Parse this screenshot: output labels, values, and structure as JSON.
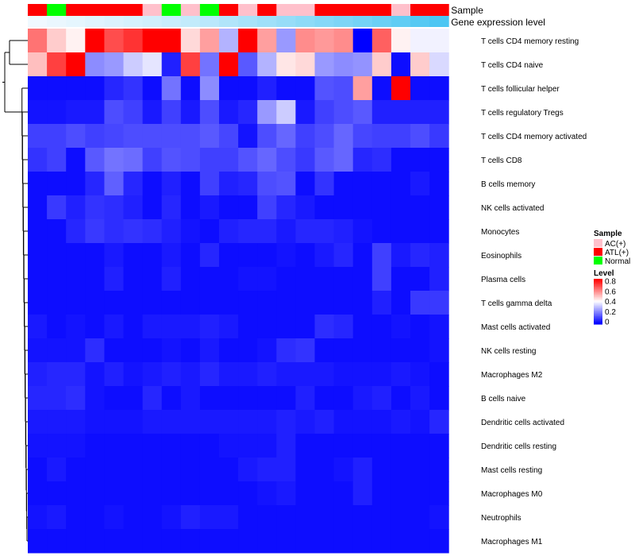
{
  "chart_data": {
    "type": "heatmap",
    "title": "",
    "annotations": {
      "sample_label": "Sample",
      "gene_expression_label": "Gene expression level",
      "sample_groups": [
        "ATL(+)",
        "Normal",
        "ATL(+)",
        "ATL(+)",
        "ATL(+)",
        "ATL(+)",
        "AC(+)",
        "Normal",
        "AC(+)",
        "Normal",
        "ATL(+)",
        "AC(+)",
        "ATL(+)",
        "AC(+)",
        "AC(+)",
        "ATL(+)",
        "ATL(+)",
        "ATL(+)",
        "ATL(+)",
        "AC(+)",
        "ATL(+)",
        "ATL(+)"
      ],
      "gene_expression_values": [
        0.02,
        0.05,
        0.08,
        0.11,
        0.14,
        0.17,
        0.2,
        0.24,
        0.28,
        0.33,
        0.38,
        0.43,
        0.48,
        0.53,
        0.58,
        0.63,
        0.68,
        0.73,
        0.78,
        0.84,
        0.9,
        0.96
      ]
    },
    "rows": [
      "T cells CD4 memory resting",
      "T cells CD4 naive",
      "T cells follicular helper",
      "T cells regulatory  Tregs",
      "T cells CD4 memory activated",
      "T cells CD8",
      "B cells memory",
      "NK cells activated",
      "Monocytes",
      "Eosinophils",
      "Plasma cells",
      "T cells gamma delta",
      "Mast cells activated",
      "NK cells resting",
      "Macrophages M2",
      "B cells naive",
      "Dendritic cells activated",
      "Dendritic cells resting",
      "Mast cells resting",
      "Macrophages M0",
      "Neutrophils",
      "Macrophages M1"
    ],
    "values": [
      [
        0.62,
        0.48,
        0.42,
        0.8,
        0.68,
        0.72,
        0.8,
        0.8,
        0.46,
        0.55,
        0.28,
        0.8,
        0.55,
        0.24,
        0.58,
        0.56,
        0.58,
        0.0,
        0.65,
        0.42,
        0.38,
        0.38
      ],
      [
        0.5,
        0.7,
        0.8,
        0.22,
        0.24,
        0.32,
        0.36,
        0.05,
        0.7,
        0.18,
        0.8,
        0.14,
        0.28,
        0.44,
        0.46,
        0.24,
        0.22,
        0.23,
        0.48,
        0.02,
        0.48,
        0.34
      ],
      [
        0.02,
        0.02,
        0.02,
        0.02,
        0.06,
        0.08,
        0.02,
        0.18,
        0.02,
        0.22,
        0.02,
        0.02,
        0.05,
        0.02,
        0.02,
        0.13,
        0.12,
        0.55,
        0.02,
        0.8,
        0.02,
        0.02
      ],
      [
        0.03,
        0.03,
        0.04,
        0.04,
        0.12,
        0.1,
        0.04,
        0.1,
        0.04,
        0.12,
        0.04,
        0.06,
        0.24,
        0.32,
        0.04,
        0.1,
        0.12,
        0.14,
        0.05,
        0.05,
        0.05,
        0.05
      ],
      [
        0.1,
        0.1,
        0.12,
        0.1,
        0.11,
        0.12,
        0.12,
        0.12,
        0.12,
        0.14,
        0.11,
        0.03,
        0.12,
        0.16,
        0.1,
        0.12,
        0.16,
        0.11,
        0.1,
        0.1,
        0.12,
        0.09
      ],
      [
        0.08,
        0.1,
        0.02,
        0.14,
        0.18,
        0.17,
        0.1,
        0.13,
        0.12,
        0.1,
        0.1,
        0.13,
        0.16,
        0.12,
        0.09,
        0.14,
        0.16,
        0.06,
        0.07,
        0.02,
        0.02,
        0.02
      ],
      [
        0.02,
        0.02,
        0.02,
        0.06,
        0.15,
        0.06,
        0.02,
        0.05,
        0.02,
        0.1,
        0.05,
        0.06,
        0.12,
        0.13,
        0.02,
        0.08,
        0.02,
        0.02,
        0.02,
        0.02,
        0.04,
        0.02
      ],
      [
        0.02,
        0.09,
        0.05,
        0.08,
        0.07,
        0.05,
        0.02,
        0.06,
        0.02,
        0.04,
        0.02,
        0.02,
        0.1,
        0.06,
        0.04,
        0.02,
        0.02,
        0.02,
        0.02,
        0.02,
        0.02,
        0.02
      ],
      [
        0.02,
        0.02,
        0.06,
        0.09,
        0.07,
        0.08,
        0.07,
        0.05,
        0.03,
        0.02,
        0.05,
        0.06,
        0.06,
        0.04,
        0.06,
        0.06,
        0.05,
        0.03,
        0.02,
        0.02,
        0.02,
        0.02
      ],
      [
        0.02,
        0.02,
        0.02,
        0.02,
        0.04,
        0.02,
        0.02,
        0.04,
        0.02,
        0.06,
        0.02,
        0.02,
        0.02,
        0.03,
        0.02,
        0.04,
        0.06,
        0.02,
        0.1,
        0.04,
        0.06,
        0.05
      ],
      [
        0.02,
        0.02,
        0.02,
        0.02,
        0.05,
        0.02,
        0.02,
        0.05,
        0.02,
        0.02,
        0.02,
        0.03,
        0.03,
        0.02,
        0.02,
        0.02,
        0.02,
        0.02,
        0.1,
        0.02,
        0.02,
        0.05
      ],
      [
        0.02,
        0.02,
        0.02,
        0.02,
        0.02,
        0.02,
        0.02,
        0.02,
        0.02,
        0.02,
        0.02,
        0.02,
        0.02,
        0.02,
        0.02,
        0.02,
        0.02,
        0.02,
        0.05,
        0.02,
        0.09,
        0.09
      ],
      [
        0.04,
        0.02,
        0.03,
        0.02,
        0.04,
        0.02,
        0.04,
        0.04,
        0.04,
        0.05,
        0.04,
        0.02,
        0.02,
        0.02,
        0.02,
        0.07,
        0.06,
        0.02,
        0.02,
        0.03,
        0.02,
        0.03
      ],
      [
        0.03,
        0.03,
        0.03,
        0.07,
        0.02,
        0.02,
        0.02,
        0.03,
        0.02,
        0.04,
        0.02,
        0.02,
        0.03,
        0.07,
        0.08,
        0.02,
        0.02,
        0.02,
        0.02,
        0.02,
        0.02,
        0.03
      ],
      [
        0.05,
        0.06,
        0.06,
        0.03,
        0.05,
        0.03,
        0.04,
        0.05,
        0.04,
        0.06,
        0.04,
        0.04,
        0.05,
        0.04,
        0.04,
        0.04,
        0.03,
        0.03,
        0.03,
        0.04,
        0.03,
        0.02
      ],
      [
        0.06,
        0.06,
        0.07,
        0.03,
        0.02,
        0.02,
        0.06,
        0.02,
        0.04,
        0.02,
        0.02,
        0.02,
        0.02,
        0.02,
        0.05,
        0.02,
        0.02,
        0.04,
        0.05,
        0.02,
        0.04,
        0.02
      ],
      [
        0.04,
        0.04,
        0.04,
        0.03,
        0.03,
        0.03,
        0.04,
        0.04,
        0.04,
        0.04,
        0.04,
        0.04,
        0.04,
        0.05,
        0.04,
        0.05,
        0.03,
        0.03,
        0.03,
        0.04,
        0.03,
        0.06
      ],
      [
        0.03,
        0.03,
        0.03,
        0.02,
        0.02,
        0.02,
        0.02,
        0.02,
        0.02,
        0.02,
        0.03,
        0.03,
        0.03,
        0.05,
        0.02,
        0.02,
        0.02,
        0.02,
        0.02,
        0.02,
        0.02,
        0.02
      ],
      [
        0.02,
        0.04,
        0.02,
        0.02,
        0.02,
        0.02,
        0.02,
        0.02,
        0.02,
        0.02,
        0.02,
        0.04,
        0.05,
        0.05,
        0.02,
        0.02,
        0.03,
        0.05,
        0.02,
        0.02,
        0.02,
        0.02
      ],
      [
        0.02,
        0.02,
        0.02,
        0.02,
        0.02,
        0.02,
        0.02,
        0.02,
        0.02,
        0.02,
        0.02,
        0.02,
        0.03,
        0.04,
        0.02,
        0.02,
        0.02,
        0.05,
        0.02,
        0.02,
        0.02,
        0.02
      ],
      [
        0.03,
        0.04,
        0.02,
        0.02,
        0.03,
        0.02,
        0.02,
        0.03,
        0.05,
        0.04,
        0.04,
        0.02,
        0.02,
        0.02,
        0.02,
        0.02,
        0.02,
        0.02,
        0.02,
        0.02,
        0.02,
        0.03
      ],
      [
        0.02,
        0.02,
        0.02,
        0.02,
        0.02,
        0.02,
        0.02,
        0.02,
        0.02,
        0.02,
        0.02,
        0.02,
        0.02,
        0.02,
        0.02,
        0.02,
        0.02,
        0.02,
        0.02,
        0.02,
        0.02,
        0.02
      ]
    ],
    "legend": {
      "sample_title": "Sample",
      "sample_entries": [
        {
          "label": "AC(+)",
          "color": "#ffc0cb"
        },
        {
          "label": "ATL(+)",
          "color": "#ff0000"
        },
        {
          "label": "Normal",
          "color": "#00ff00"
        }
      ],
      "level_title": "Level",
      "level_ticks": [
        "0.8",
        "0.6",
        "0.4",
        "0.2",
        "0"
      ],
      "placement": "right"
    },
    "color_scale": {
      "low": "#0000ff",
      "mid": "#ffffff",
      "high": "#ff0000",
      "domain": [
        0,
        0.8
      ]
    },
    "annotation_colors": {
      "gene_low": "#f3faff",
      "gene_high": "#45c4f2"
    }
  }
}
